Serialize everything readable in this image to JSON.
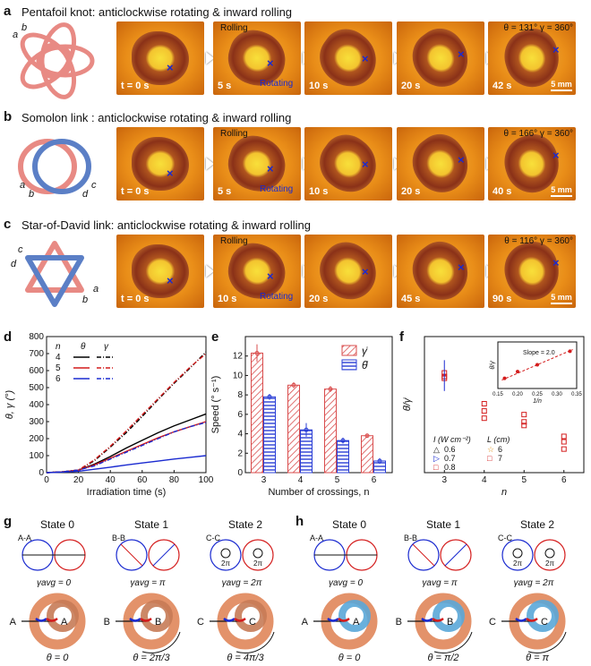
{
  "panel_a": {
    "letter": "a",
    "title": "Pentafoil knot: anticlockwise rotating & inward rolling",
    "labels": [
      "a",
      "b"
    ],
    "frames": [
      {
        "t": "t = 0 s"
      },
      {
        "t": "5 s",
        "rolling": "Rolling",
        "rotating": "Rotating"
      },
      {
        "t": "10 s"
      },
      {
        "t": "20 s"
      },
      {
        "t": "42 s",
        "angles": "θ = 131°  γ = 360°"
      }
    ],
    "scale": "5 mm"
  },
  "panel_b": {
    "letter": "b",
    "title": "Somolon link : anticlockwise rotating & inward rolling",
    "labels": [
      "a",
      "b",
      "c",
      "d"
    ],
    "frames": [
      {
        "t": "t = 0 s"
      },
      {
        "t": "5 s",
        "rolling": "Rolling",
        "rotating": "Rotating"
      },
      {
        "t": "10 s"
      },
      {
        "t": "20 s"
      },
      {
        "t": "40 s",
        "angles": "θ = 166°  γ = 360°"
      }
    ],
    "scale": "5 mm"
  },
  "panel_c": {
    "letter": "c",
    "title": "Star-of-David link:  anticlockwise rotating & inward rolling",
    "labels": [
      "c",
      "d",
      "a",
      "b"
    ],
    "frames": [
      {
        "t": "t = 0 s"
      },
      {
        "t": "10 s",
        "rolling": "Rolling",
        "rotating": "Rotating"
      },
      {
        "t": "20 s"
      },
      {
        "t": "45 s"
      },
      {
        "t": "90 s",
        "angles": "θ = 116°  γ = 360°"
      }
    ],
    "scale": "5 mm"
  },
  "chart_data": [
    {
      "panel": "d",
      "type": "line",
      "xlabel": "Irradiation time (s)",
      "ylabel": "θ, γ (°)",
      "xlim": [
        0,
        100
      ],
      "ylim": [
        0,
        800
      ],
      "xticks": [
        "0",
        "20",
        "40",
        "60",
        "80",
        "100"
      ],
      "yticks": [
        "0",
        "100",
        "200",
        "300",
        "400",
        "500",
        "600",
        "700",
        "800"
      ],
      "legend": {
        "headers": [
          "n",
          "θ",
          "γ"
        ],
        "rows": [
          "4",
          "5",
          "6"
        ]
      },
      "series": [
        {
          "name": "4 θ",
          "color": "#000000",
          "style": "solid",
          "x": [
            0,
            10,
            20,
            30,
            40,
            50,
            60,
            70,
            80,
            90,
            100
          ],
          "y": [
            0,
            5,
            15,
            50,
            95,
            145,
            190,
            235,
            275,
            310,
            345
          ]
        },
        {
          "name": "4 γ",
          "color": "#000000",
          "style": "dashdot",
          "x": [
            0,
            10,
            20,
            30,
            40,
            50,
            60,
            70,
            80,
            90,
            100
          ],
          "y": [
            0,
            5,
            15,
            70,
            150,
            235,
            330,
            430,
            525,
            615,
            710
          ]
        },
        {
          "name": "5 θ",
          "color": "#d41c1c",
          "style": "solid",
          "x": [
            0,
            10,
            20,
            30,
            40,
            50,
            60,
            70,
            80,
            90,
            100
          ],
          "y": [
            0,
            5,
            15,
            45,
            85,
            125,
            165,
            205,
            240,
            270,
            300
          ]
        },
        {
          "name": "5 γ",
          "color": "#d41c1c",
          "style": "dashdot",
          "x": [
            0,
            10,
            20,
            30,
            40,
            50,
            60,
            70,
            80,
            90,
            100
          ],
          "y": [
            0,
            5,
            15,
            75,
            155,
            245,
            340,
            435,
            530,
            620,
            700
          ]
        },
        {
          "name": "6 θ",
          "color": "#1a2ad0",
          "style": "solid",
          "x": [
            0,
            10,
            20,
            30,
            40,
            50,
            60,
            70,
            80,
            90,
            100
          ],
          "y": [
            0,
            3,
            8,
            20,
            32,
            45,
            57,
            68,
            80,
            90,
            100
          ]
        },
        {
          "name": "6 γ",
          "color": "#1a2ad0",
          "style": "dashdot",
          "x": [
            0,
            10,
            20,
            30,
            40,
            50,
            60,
            70,
            80,
            90,
            100
          ],
          "y": [
            0,
            5,
            15,
            40,
            80,
            120,
            160,
            200,
            240,
            270,
            295
          ]
        }
      ]
    },
    {
      "panel": "e",
      "type": "bar",
      "xlabel": "Number of crossings, n",
      "ylabel": "Speed (° s⁻¹)",
      "ylim": [
        0,
        14
      ],
      "categories": [
        "3",
        "4",
        "5",
        "6"
      ],
      "yticks": [
        "0",
        "2",
        "4",
        "6",
        "8",
        "10",
        "12"
      ],
      "series": [
        {
          "name": "γ̇",
          "color": "#d94c4c",
          "values": [
            12.3,
            9.0,
            8.6,
            3.8
          ],
          "err": [
            0.9,
            0.3,
            0.3,
            0.2
          ]
        },
        {
          "name": "θ̇",
          "color": "#2b3fd6",
          "values": [
            7.8,
            4.4,
            3.3,
            1.2
          ],
          "err": [
            0.3,
            0.7,
            0.3,
            0.3
          ]
        }
      ]
    },
    {
      "panel": "f",
      "type": "scatter",
      "xlabel": "n",
      "ylabel": "θ̇/γ̇",
      "xlim": [
        2.5,
        6.5
      ],
      "ylim": [
        0.1,
        0.85
      ],
      "xticks": [
        "3",
        "4",
        "5",
        "6"
      ],
      "legend": {
        "intensity_title": "I (W cm⁻²)",
        "intensity": [
          "0.6",
          "0.7",
          "0.8"
        ],
        "length_title": "L (cm)",
        "length": [
          "6",
          "7"
        ]
      },
      "points": [
        {
          "x": 3,
          "y": 0.65
        },
        {
          "x": 3,
          "y": 0.62
        },
        {
          "x": 3,
          "y": 0.63
        },
        {
          "x": 4,
          "y": 0.48
        },
        {
          "x": 4,
          "y": 0.44
        },
        {
          "x": 4,
          "y": 0.4
        },
        {
          "x": 5,
          "y": 0.42
        },
        {
          "x": 5,
          "y": 0.38
        },
        {
          "x": 5,
          "y": 0.36
        },
        {
          "x": 6,
          "y": 0.3
        },
        {
          "x": 6,
          "y": 0.27
        },
        {
          "x": 6,
          "y": 0.23
        }
      ],
      "inset": {
        "xlabel": "1/n",
        "ylabel": "θ̇/γ̇",
        "xticks": [
          "0.15",
          "0.20",
          "0.25",
          "0.30",
          "0.35"
        ],
        "annotation": "Slope = 2.0",
        "x": [
          0.167,
          0.2,
          0.25,
          0.333
        ],
        "y": [
          0.32,
          0.4,
          0.48,
          0.64
        ]
      }
    }
  ],
  "panel_g": {
    "letter": "g",
    "states": [
      {
        "title": "State 0",
        "section": "A-A",
        "gamma": "γavg = 0",
        "theta": "θ = 0",
        "mark": "A"
      },
      {
        "title": "State 1",
        "section": "B-B",
        "gamma": "γavg = π",
        "theta": "θ = 2π/3",
        "mark": "B"
      },
      {
        "title": "State 2",
        "section": "C-C",
        "gamma": "γavg = 2π",
        "theta": "θ = 4π/3",
        "mark": "C"
      }
    ],
    "twopi": "2π"
  },
  "panel_h": {
    "letter": "h",
    "states": [
      {
        "title": "State 0",
        "section": "A-A",
        "gamma": "γavg = 0",
        "theta": "θ = 0",
        "mark": "A"
      },
      {
        "title": "State 1",
        "section": "B-B",
        "gamma": "γavg = π",
        "theta": "θ = π/2",
        "mark": "B"
      },
      {
        "title": "State 2",
        "section": "C-C",
        "gamma": "γavg = 2π",
        "theta": "θ = π",
        "mark": "C"
      }
    ],
    "twopi": "2π"
  },
  "colors": {
    "red": "#d41c1c",
    "blue": "#1a2ad0",
    "knot_orange": "#e3926a",
    "knot_pink": "#e88a84",
    "knot_blue": "#5aa7d8",
    "hatch_red": "#d94c4c",
    "hatch_blue": "#2b3fd6"
  }
}
